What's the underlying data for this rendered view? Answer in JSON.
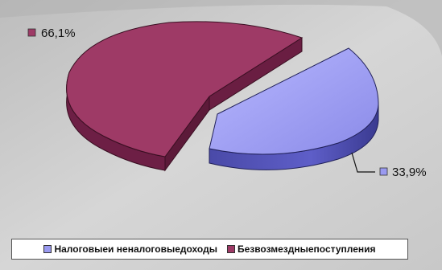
{
  "chart_data": {
    "type": "pie",
    "style": "3d-exploded",
    "slices": [
      {
        "label": "Налоговые и неналоговые доходы",
        "value": 33.9,
        "data_label": "33,9%",
        "color": "#9a9af0"
      },
      {
        "label": "Безвозмездные поступления",
        "value": 66.1,
        "data_label": "66,1%",
        "color": "#9e3a66"
      }
    ],
    "legend_position": "bottom"
  },
  "legend": {
    "items": [
      {
        "label": "Налоговыеи неналоговыедоходы",
        "color": "#9a9af0"
      },
      {
        "label": "Безвозмездныепоступления",
        "color": "#9e3a66"
      }
    ]
  }
}
